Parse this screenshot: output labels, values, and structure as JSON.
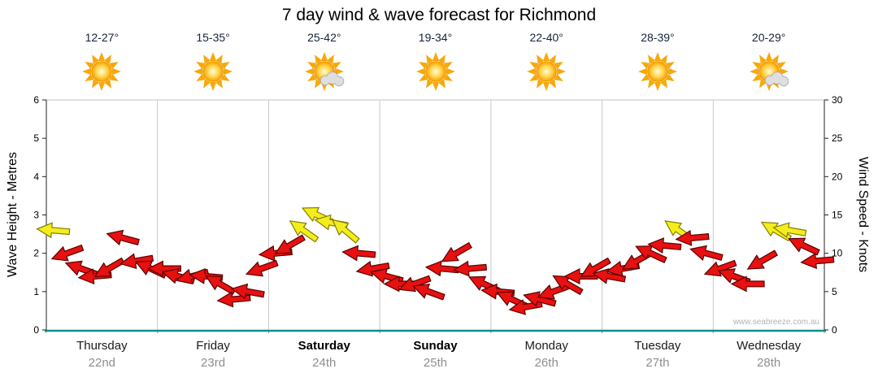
{
  "title": "7 day wind & wave forecast for Richmond",
  "watermark": "www.seabreeze.com.au",
  "axes": {
    "left_title": "Wave Height - Metres",
    "right_title": "Wind Speed - Knots"
  },
  "days": [
    {
      "name": "Thursday",
      "date": "22nd",
      "temp": "12-27°",
      "icon": "sun",
      "bold": false
    },
    {
      "name": "Friday",
      "date": "23rd",
      "temp": "15-35°",
      "icon": "sun",
      "bold": false
    },
    {
      "name": "Saturday",
      "date": "24th",
      "temp": "25-42°",
      "icon": "sun-cloud",
      "bold": true
    },
    {
      "name": "Sunday",
      "date": "25th",
      "temp": "19-34°",
      "icon": "sun",
      "bold": true
    },
    {
      "name": "Monday",
      "date": "26th",
      "temp": "22-40°",
      "icon": "sun",
      "bold": false
    },
    {
      "name": "Tuesday",
      "date": "27th",
      "temp": "28-39°",
      "icon": "sun",
      "bold": false
    },
    {
      "name": "Wednesday",
      "date": "28th",
      "temp": "20-29°",
      "icon": "sun-cloud",
      "bold": false
    }
  ],
  "chart_data": {
    "type": "wind-arrows",
    "title": "7 day wind & wave forecast for Richmond",
    "x_categories": [
      "Thursday 22nd",
      "Friday 23rd",
      "Saturday 24th",
      "Sunday 25th",
      "Monday 26th",
      "Tuesday 27th",
      "Wednesday 28th"
    ],
    "samples_per_day": 8,
    "wave_axis": {
      "label": "Wave Height - Metres",
      "min": 0,
      "max": 6,
      "ticks": [
        0,
        1,
        2,
        3,
        4,
        5,
        6
      ]
    },
    "wind_axis": {
      "label": "Wind Speed - Knots",
      "min": 0,
      "max": 30,
      "ticks": [
        0,
        5,
        10,
        15,
        20,
        25,
        30
      ]
    },
    "wind_knots": [
      13,
      10,
      8,
      7,
      8,
      12,
      9,
      8,
      8,
      7,
      7,
      7,
      6,
      4,
      5,
      8,
      10,
      11,
      13,
      15,
      14,
      13,
      10,
      8,
      7,
      6,
      6,
      5,
      8,
      10,
      8,
      6,
      5,
      4,
      3,
      4,
      5,
      6,
      7,
      8,
      7,
      8,
      9,
      10,
      11,
      13,
      12,
      10,
      8,
      7,
      6,
      9,
      13,
      13,
      11,
      9
    ],
    "wind_dir_deg": [
      185,
      160,
      200,
      175,
      150,
      195,
      170,
      205,
      180,
      195,
      165,
      185,
      210,
      175,
      190,
      160,
      175,
      150,
      215,
      205,
      190,
      220,
      185,
      170,
      195,
      180,
      160,
      200,
      185,
      150,
      175,
      205,
      185,
      205,
      170,
      195,
      160,
      210,
      180,
      150,
      190,
      170,
      150,
      205,
      185,
      215,
      175,
      195,
      160,
      200,
      180,
      150,
      210,
      190,
      205,
      175
    ],
    "style": {
      "arrow_light_color": "#e81010",
      "arrow_light_outline": "#5a0000",
      "arrow_moderate_color": "#f2ee1c",
      "arrow_moderate_outline": "#8a7c00",
      "moderate_threshold_knots": 13,
      "gridline_color": "#c9c9c9",
      "baseline_color": "#0e8f8f",
      "axis_color": "#222222"
    }
  }
}
